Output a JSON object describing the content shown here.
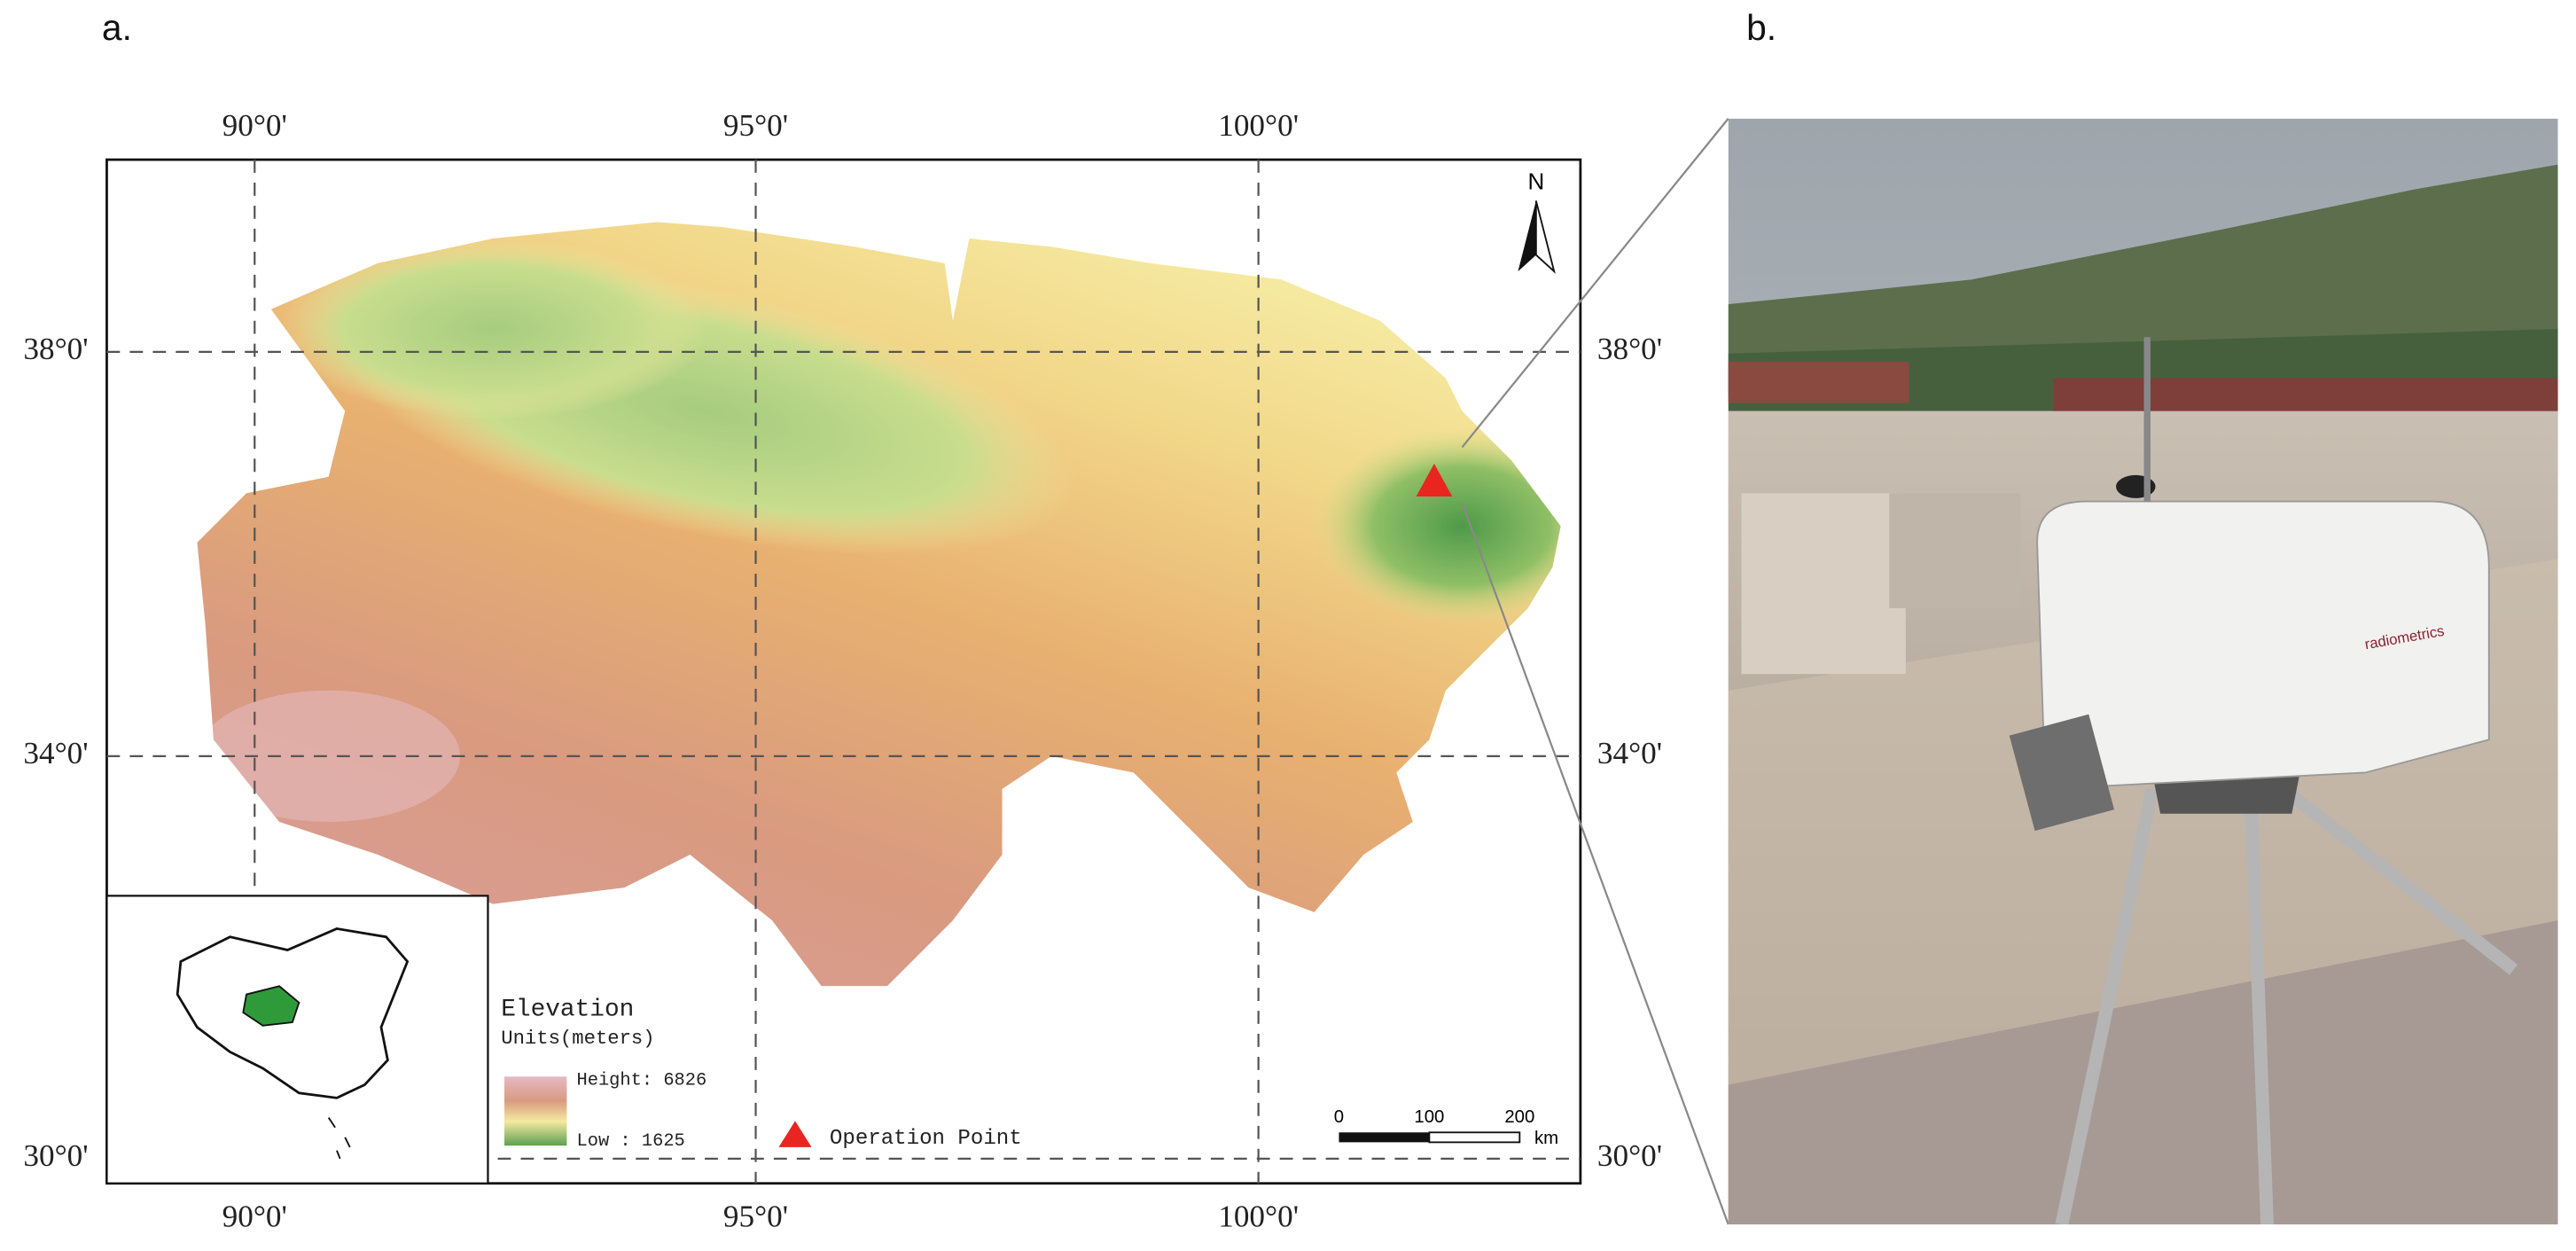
{
  "panel_a": {
    "label": "a.",
    "lon_labels": [
      "90°0'",
      "95°0'",
      "100°0'"
    ],
    "lat_labels": [
      "38°0'",
      "34°0'",
      "30°0'"
    ],
    "north": "N",
    "legend": {
      "title": "Elevation",
      "units": "Units(meters)",
      "high": "Height: 6826",
      "low": "Low : 1625",
      "point": "Operation Point"
    },
    "scale_bar": {
      "labels": [
        "0",
        "100",
        "200"
      ],
      "unit": "km"
    }
  },
  "panel_b": {
    "label": "b.",
    "brand": "radiometrics"
  }
}
